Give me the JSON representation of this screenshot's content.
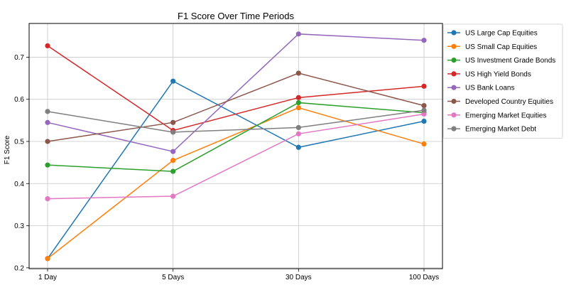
{
  "chart_data": {
    "type": "line",
    "title": "F1 Score Over Time Periods",
    "xlabel": "",
    "ylabel": "F1 Score",
    "categories": [
      "1 Day",
      "5 Days",
      "30 Days",
      "100 Days"
    ],
    "ylim": [
      0.198,
      0.78
    ],
    "yticks": [
      0.2,
      0.3,
      0.4,
      0.5,
      0.6,
      0.7
    ],
    "ytick_labels": [
      "0.2",
      "0.3",
      "0.4",
      "0.5",
      "0.6",
      "0.7"
    ],
    "grid": true,
    "legend_position": "outside-top-right",
    "series": [
      {
        "name": "US Large Cap Equities",
        "color": "#1f77b4",
        "values": [
          0.222,
          0.643,
          0.486,
          0.548
        ]
      },
      {
        "name": "US Small Cap Equities",
        "color": "#ff7f0e",
        "values": [
          0.222,
          0.455,
          0.58,
          0.494
        ]
      },
      {
        "name": "US Investment Grade Bonds",
        "color": "#2ca02c",
        "values": [
          0.444,
          0.429,
          0.592,
          0.568
        ]
      },
      {
        "name": "US High Yield Bonds",
        "color": "#d62728",
        "values": [
          0.727,
          0.526,
          0.604,
          0.631
        ]
      },
      {
        "name": "US Bank Loans",
        "color": "#9467bd",
        "values": [
          0.545,
          0.476,
          0.755,
          0.74
        ]
      },
      {
        "name": "Developed Country Equities",
        "color": "#8c564b",
        "values": [
          0.5,
          0.545,
          0.662,
          0.585
        ]
      },
      {
        "name": "Emerging Market Equities",
        "color": "#e377c2",
        "values": [
          0.364,
          0.37,
          0.518,
          0.565
        ]
      },
      {
        "name": "Emerging Market Debt",
        "color": "#7f7f7f",
        "values": [
          0.571,
          0.522,
          0.533,
          0.574
        ]
      }
    ]
  }
}
